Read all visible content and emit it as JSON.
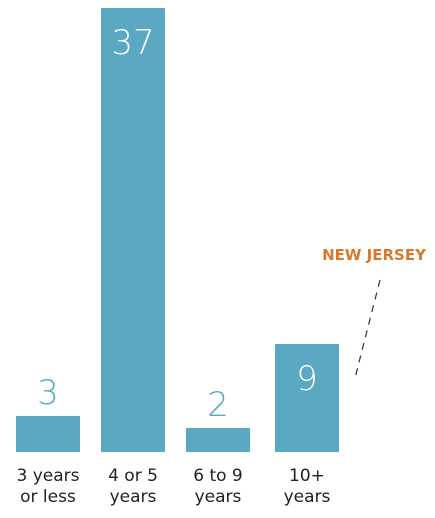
{
  "chart_data": {
    "type": "bar",
    "categories": [
      "3 years\nor less",
      "4 or 5\nyears",
      "6 to 9\nyears",
      "10+\nyears"
    ],
    "values": [
      3,
      37,
      2,
      9
    ],
    "color": "#5aa8c2",
    "ylim": [
      0,
      37
    ],
    "annotation": "NEW JERSEY",
    "annotation_color": "#d9782d"
  }
}
